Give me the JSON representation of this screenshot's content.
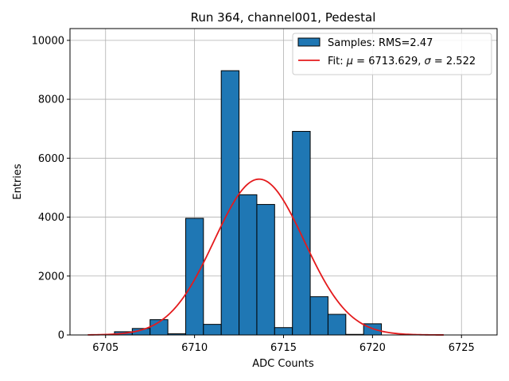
{
  "chart_data": {
    "type": "bar",
    "title": "Run 364, channel001, Pedestal",
    "xlabel": "ADC Counts",
    "ylabel": "Entries",
    "xlim": [
      6703.0,
      6727.0
    ],
    "ylim": [
      0,
      10400
    ],
    "xticks": [
      6705,
      6710,
      6715,
      6720,
      6725
    ],
    "yticks": [
      0,
      2000,
      4000,
      6000,
      8000,
      10000
    ],
    "grid": true,
    "legend_position": "top-right",
    "histogram": {
      "name": "Samples: RMS=2.47",
      "color": "#1f77b4",
      "bin_width": 1,
      "bins": [
        {
          "x": 6706,
          "value": 110
        },
        {
          "x": 6707,
          "value": 220
        },
        {
          "x": 6708,
          "value": 520
        },
        {
          "x": 6709,
          "value": 40
        },
        {
          "x": 6710,
          "value": 3960
        },
        {
          "x": 6711,
          "value": 360
        },
        {
          "x": 6712,
          "value": 8970
        },
        {
          "x": 6713,
          "value": 4760
        },
        {
          "x": 6714,
          "value": 4430
        },
        {
          "x": 6715,
          "value": 250
        },
        {
          "x": 6716,
          "value": 6910
        },
        {
          "x": 6717,
          "value": 1300
        },
        {
          "x": 6718,
          "value": 700
        },
        {
          "x": 6719,
          "value": 20
        },
        {
          "x": 6720,
          "value": 380
        }
      ]
    },
    "fit": {
      "name": "Fit: μ = 6713.629, σ = 2.522",
      "name_prefix": "Fit: ",
      "mu_symbol": "μ",
      "mu_text": " = 6713.629, ",
      "sigma_symbol": "σ",
      "sigma_text": " = 2.522",
      "mu": 6713.629,
      "sigma": 2.522,
      "amplitude": 5290,
      "x_range": [
        6704,
        6724
      ],
      "color": "#e41a1c"
    }
  }
}
